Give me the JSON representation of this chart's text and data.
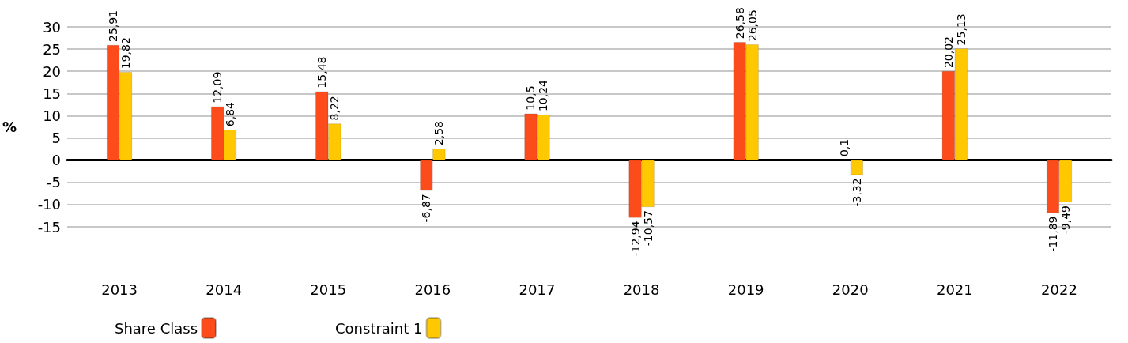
{
  "chart_data": {
    "type": "bar",
    "ylabel": "%",
    "categories": [
      "2013",
      "2014",
      "2015",
      "2016",
      "2017",
      "2018",
      "2019",
      "2020",
      "2021",
      "2022"
    ],
    "series": [
      {
        "name": "Share Class",
        "color": "#fc4c1b",
        "values": [
          25.91,
          12.09,
          15.48,
          -6.87,
          10.5,
          -12.94,
          26.58,
          0.1,
          20.02,
          -11.89
        ],
        "value_labels": [
          "25,91",
          "12,09",
          "15,48",
          "-6,87",
          "10,5",
          "-12,94",
          "26,58",
          "0,1",
          "20,02",
          "-11,89"
        ]
      },
      {
        "name": "Constraint 1",
        "color": "#ffc800",
        "values": [
          19.82,
          6.84,
          8.22,
          2.58,
          10.24,
          -10.57,
          26.05,
          -3.32,
          25.13,
          -9.49
        ],
        "value_labels": [
          "19,82",
          "6,84",
          "8,22",
          "2,58",
          "10,24",
          "-10,57",
          "26,05",
          "-3,32",
          "25,13",
          "-9,49"
        ]
      }
    ],
    "ylim": [
      -15,
      30
    ],
    "yticks": [
      -15,
      -10,
      -5,
      0,
      5,
      10,
      15,
      20,
      25,
      30
    ],
    "grid": "y",
    "legend": "bottom left"
  }
}
